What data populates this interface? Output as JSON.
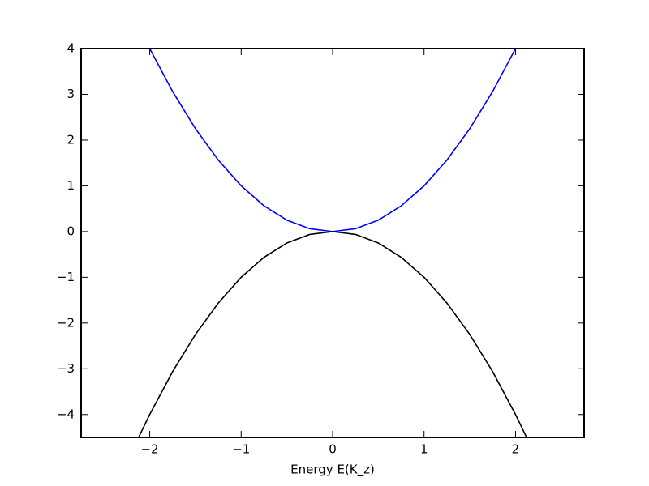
{
  "chart_data": {
    "type": "line",
    "x_label": "Energy E(K_z)",
    "xlim": [
      -2.75,
      2.75
    ],
    "ylim": [
      -4.5,
      4
    ],
    "xticks": [
      {
        "value": -2,
        "label": "−2"
      },
      {
        "value": -1,
        "label": "−1"
      },
      0,
      1,
      2
    ],
    "yticks": [
      {
        "value": -4,
        "label": "−4"
      },
      {
        "value": -3,
        "label": "−3"
      },
      {
        "value": -2,
        "label": "−2"
      },
      {
        "value": -1,
        "label": "−1"
      },
      0,
      1,
      2,
      3,
      4
    ],
    "series": [
      {
        "color": "#0000ff",
        "x": [
          -2,
          -1.75,
          -1.5,
          -1.25,
          -1,
          -0.75,
          -0.5,
          -0.25,
          0,
          0.25,
          0.5,
          0.75,
          1,
          1.25,
          1.5,
          1.75,
          2
        ],
        "values": [
          4,
          3.0625,
          2.25,
          1.5625,
          1,
          0.5625,
          0.25,
          0.0625,
          0,
          0.0625,
          0.25,
          0.5625,
          1,
          1.5625,
          2.25,
          3.0625,
          4
        ]
      },
      {
        "color": "#000000",
        "x": [
          -2.12,
          -2,
          -1.75,
          -1.5,
          -1.25,
          -1,
          -0.75,
          -0.5,
          -0.25,
          0,
          0.25,
          0.5,
          0.75,
          1,
          1.25,
          1.5,
          1.75,
          2,
          2.12
        ],
        "values": [
          -4.4944,
          -4,
          -3.0625,
          -2.25,
          -1.5625,
          -1,
          -0.5625,
          -0.25,
          -0.0625,
          0,
          -0.0625,
          -0.25,
          -0.5625,
          -1,
          -1.5625,
          -2.25,
          -3.0625,
          -4,
          -4.4944
        ]
      }
    ]
  }
}
